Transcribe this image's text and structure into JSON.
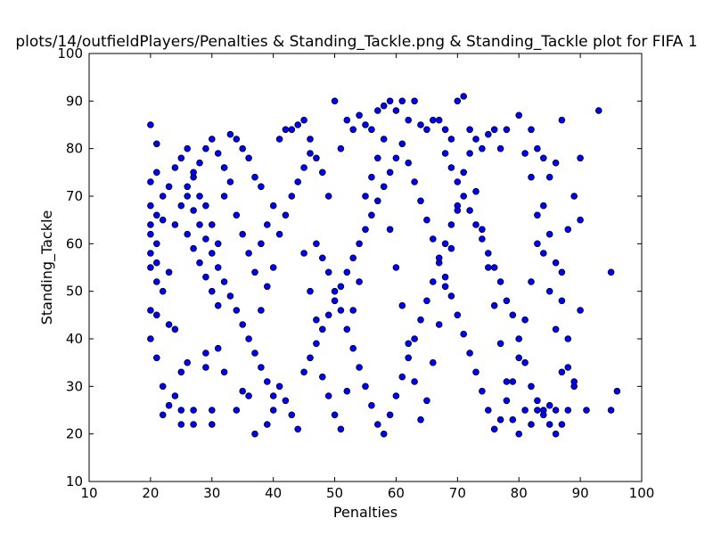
{
  "chart_data": {
    "type": "scatter",
    "title": "plots/14/outfieldPlayers/Penalties & Standing_Tackle.png & Standing_Tackle plot for FIFA 1",
    "xlabel": "Penalties",
    "ylabel": "Standing_Tackle",
    "xlim": [
      10,
      100
    ],
    "ylim": [
      10,
      100
    ],
    "xticks": [
      "10",
      "20",
      "30",
      "40",
      "50",
      "60",
      "70",
      "80",
      "90",
      "100"
    ],
    "yticks": [
      "10",
      "20",
      "30",
      "40",
      "50",
      "60",
      "70",
      "80",
      "90",
      "100"
    ],
    "grid": false,
    "marker_color": "#0000ff",
    "marker_edge_color": "#000000",
    "points": [
      [
        20,
        85
      ],
      [
        21,
        81
      ],
      [
        20,
        73
      ],
      [
        21,
        75
      ],
      [
        22,
        70
      ],
      [
        20,
        68
      ],
      [
        21,
        66
      ],
      [
        20,
        64
      ],
      [
        20,
        62
      ],
      [
        21,
        60
      ],
      [
        20,
        58
      ],
      [
        21,
        56
      ],
      [
        20,
        55
      ],
      [
        21,
        52
      ],
      [
        20,
        46
      ],
      [
        20,
        40
      ],
      [
        21,
        45
      ],
      [
        21,
        36
      ],
      [
        22,
        30
      ],
      [
        22,
        24
      ],
      [
        23,
        26
      ],
      [
        24,
        28
      ],
      [
        25,
        25
      ],
      [
        25,
        22
      ],
      [
        25,
        33
      ],
      [
        23,
        43
      ],
      [
        24,
        42
      ],
      [
        22,
        50
      ],
      [
        23,
        54
      ],
      [
        22,
        65
      ],
      [
        23,
        72
      ],
      [
        24,
        76
      ],
      [
        25,
        78
      ],
      [
        26,
        80
      ],
      [
        27,
        74
      ],
      [
        28,
        70
      ],
      [
        29,
        68
      ],
      [
        30,
        64
      ],
      [
        31,
        60
      ],
      [
        32,
        76
      ],
      [
        33,
        83
      ],
      [
        34,
        82
      ],
      [
        35,
        80
      ],
      [
        36,
        78
      ],
      [
        37,
        74
      ],
      [
        38,
        72
      ],
      [
        26,
        35
      ],
      [
        27,
        25
      ],
      [
        27,
        22
      ],
      [
        29,
        34
      ],
      [
        29,
        37
      ],
      [
        30,
        25
      ],
      [
        30,
        22
      ],
      [
        31,
        38
      ],
      [
        32,
        33
      ],
      [
        34,
        25
      ],
      [
        35,
        29
      ],
      [
        36,
        28
      ],
      [
        37,
        20
      ],
      [
        39,
        22
      ],
      [
        38,
        46
      ],
      [
        39,
        51
      ],
      [
        40,
        55
      ],
      [
        41,
        82
      ],
      [
        42,
        84
      ],
      [
        43,
        84
      ],
      [
        44,
        85
      ],
      [
        45,
        86
      ],
      [
        46,
        82
      ],
      [
        47,
        78
      ],
      [
        48,
        75
      ],
      [
        49,
        70
      ],
      [
        50,
        90
      ],
      [
        51,
        80
      ],
      [
        52,
        86
      ],
      [
        53,
        84
      ],
      [
        54,
        87
      ],
      [
        55,
        85
      ],
      [
        56,
        84
      ],
      [
        57,
        88
      ],
      [
        58,
        89
      ],
      [
        59,
        90
      ],
      [
        60,
        88
      ],
      [
        61,
        90
      ],
      [
        62,
        86
      ],
      [
        63,
        90
      ],
      [
        64,
        85
      ],
      [
        65,
        84
      ],
      [
        66,
        86
      ],
      [
        67,
        86
      ],
      [
        68,
        84
      ],
      [
        69,
        82
      ],
      [
        70,
        90
      ],
      [
        71,
        91
      ],
      [
        72,
        84
      ],
      [
        73,
        82
      ],
      [
        74,
        80
      ],
      [
        75,
        83
      ],
      [
        76,
        84
      ],
      [
        77,
        80
      ],
      [
        78,
        84
      ],
      [
        80,
        87
      ],
      [
        81,
        79
      ],
      [
        82,
        84
      ],
      [
        83,
        80
      ],
      [
        84,
        78
      ],
      [
        85,
        74
      ],
      [
        86,
        77
      ],
      [
        87,
        86
      ],
      [
        89,
        70
      ],
      [
        90,
        78
      ],
      [
        90,
        65
      ],
      [
        88,
        63
      ],
      [
        87,
        54
      ],
      [
        90,
        46
      ],
      [
        93,
        88
      ],
      [
        95,
        54
      ],
      [
        95,
        25
      ],
      [
        96,
        29
      ],
      [
        91,
        25
      ],
      [
        89,
        31
      ],
      [
        88,
        34
      ],
      [
        87,
        33
      ],
      [
        86,
        20
      ],
      [
        85,
        22
      ],
      [
        84,
        25
      ],
      [
        83,
        27
      ],
      [
        82,
        30
      ],
      [
        81,
        35
      ],
      [
        80,
        40
      ],
      [
        79,
        45
      ],
      [
        78,
        48
      ],
      [
        77,
        52
      ],
      [
        76,
        55
      ],
      [
        75,
        58
      ],
      [
        74,
        61
      ],
      [
        73,
        64
      ],
      [
        72,
        67
      ],
      [
        71,
        70
      ],
      [
        70,
        73
      ],
      [
        69,
        76
      ],
      [
        68,
        79
      ],
      [
        41,
        62
      ],
      [
        42,
        66
      ],
      [
        43,
        70
      ],
      [
        44,
        73
      ],
      [
        45,
        76
      ],
      [
        46,
        79
      ],
      [
        47,
        60
      ],
      [
        48,
        57
      ],
      [
        49,
        54
      ],
      [
        50,
        50
      ],
      [
        51,
        46
      ],
      [
        52,
        42
      ],
      [
        53,
        38
      ],
      [
        54,
        34
      ],
      [
        55,
        30
      ],
      [
        56,
        26
      ],
      [
        57,
        22
      ],
      [
        58,
        20
      ],
      [
        59,
        24
      ],
      [
        60,
        28
      ],
      [
        61,
        32
      ],
      [
        62,
        36
      ],
      [
        63,
        40
      ],
      [
        64,
        44
      ],
      [
        65,
        48
      ],
      [
        66,
        52
      ],
      [
        67,
        56
      ],
      [
        68,
        60
      ],
      [
        69,
        64
      ],
      [
        70,
        68
      ],
      [
        41,
        30
      ],
      [
        42,
        27
      ],
      [
        43,
        24
      ],
      [
        44,
        21
      ],
      [
        45,
        33
      ],
      [
        46,
        36
      ],
      [
        47,
        39
      ],
      [
        48,
        42
      ],
      [
        49,
        45
      ],
      [
        50,
        48
      ],
      [
        51,
        51
      ],
      [
        52,
        54
      ],
      [
        53,
        57
      ],
      [
        54,
        60
      ],
      [
        55,
        63
      ],
      [
        56,
        66
      ],
      [
        57,
        69
      ],
      [
        58,
        72
      ],
      [
        59,
        75
      ],
      [
        60,
        78
      ],
      [
        61,
        81
      ],
      [
        62,
        77
      ],
      [
        63,
        73
      ],
      [
        64,
        69
      ],
      [
        65,
        65
      ],
      [
        66,
        61
      ],
      [
        67,
        57
      ],
      [
        68,
        53
      ],
      [
        69,
        49
      ],
      [
        70,
        45
      ],
      [
        71,
        41
      ],
      [
        72,
        37
      ],
      [
        73,
        33
      ],
      [
        74,
        29
      ],
      [
        75,
        25
      ],
      [
        76,
        21
      ],
      [
        77,
        23
      ],
      [
        78,
        27
      ],
      [
        79,
        31
      ],
      [
        80,
        20
      ],
      [
        81,
        25
      ],
      [
        82,
        22
      ],
      [
        83,
        25
      ],
      [
        84,
        24
      ],
      [
        85,
        26
      ],
      [
        86,
        25
      ],
      [
        87,
        22
      ],
      [
        88,
        25
      ],
      [
        26,
        70
      ],
      [
        27,
        67
      ],
      [
        28,
        64
      ],
      [
        29,
        61
      ],
      [
        30,
        58
      ],
      [
        31,
        55
      ],
      [
        32,
        52
      ],
      [
        33,
        49
      ],
      [
        34,
        46
      ],
      [
        35,
        43
      ],
      [
        36,
        40
      ],
      [
        37,
        37
      ],
      [
        38,
        34
      ],
      [
        39,
        31
      ],
      [
        40,
        28
      ],
      [
        40,
        25
      ],
      [
        26,
        62
      ],
      [
        27,
        59
      ],
      [
        28,
        56
      ],
      [
        29,
        53
      ],
      [
        30,
        50
      ],
      [
        31,
        47
      ],
      [
        32,
        70
      ],
      [
        33,
        73
      ],
      [
        34,
        66
      ],
      [
        35,
        62
      ],
      [
        36,
        58
      ],
      [
        37,
        54
      ],
      [
        38,
        60
      ],
      [
        39,
        64
      ],
      [
        40,
        68
      ],
      [
        24,
        64
      ],
      [
        25,
        68
      ],
      [
        26,
        72
      ],
      [
        27,
        75
      ],
      [
        28,
        77
      ],
      [
        29,
        80
      ],
      [
        30,
        82
      ],
      [
        31,
        79
      ],
      [
        32,
        76
      ],
      [
        45,
        58
      ],
      [
        46,
        50
      ],
      [
        47,
        44
      ],
      [
        48,
        32
      ],
      [
        49,
        28
      ],
      [
        50,
        24
      ],
      [
        51,
        21
      ],
      [
        52,
        29
      ],
      [
        53,
        46
      ],
      [
        54,
        52
      ],
      [
        55,
        70
      ],
      [
        56,
        74
      ],
      [
        57,
        78
      ],
      [
        58,
        82
      ],
      [
        59,
        63
      ],
      [
        60,
        55
      ],
      [
        61,
        47
      ],
      [
        62,
        39
      ],
      [
        63,
        31
      ],
      [
        64,
        23
      ],
      [
        65,
        27
      ],
      [
        66,
        35
      ],
      [
        67,
        43
      ],
      [
        68,
        51
      ],
      [
        69,
        59
      ],
      [
        70,
        67
      ],
      [
        71,
        75
      ],
      [
        72,
        79
      ],
      [
        73,
        71
      ],
      [
        74,
        63
      ],
      [
        75,
        55
      ],
      [
        76,
        47
      ],
      [
        77,
        39
      ],
      [
        78,
        31
      ],
      [
        79,
        23
      ],
      [
        80,
        36
      ],
      [
        81,
        44
      ],
      [
        82,
        52
      ],
      [
        83,
        60
      ],
      [
        84,
        68
      ],
      [
        85,
        62
      ],
      [
        86,
        56
      ],
      [
        87,
        48
      ],
      [
        88,
        40
      ],
      [
        89,
        30
      ],
      [
        86,
        42
      ],
      [
        85,
        50
      ],
      [
        84,
        58
      ],
      [
        83,
        66
      ],
      [
        82,
        74
      ]
    ]
  }
}
